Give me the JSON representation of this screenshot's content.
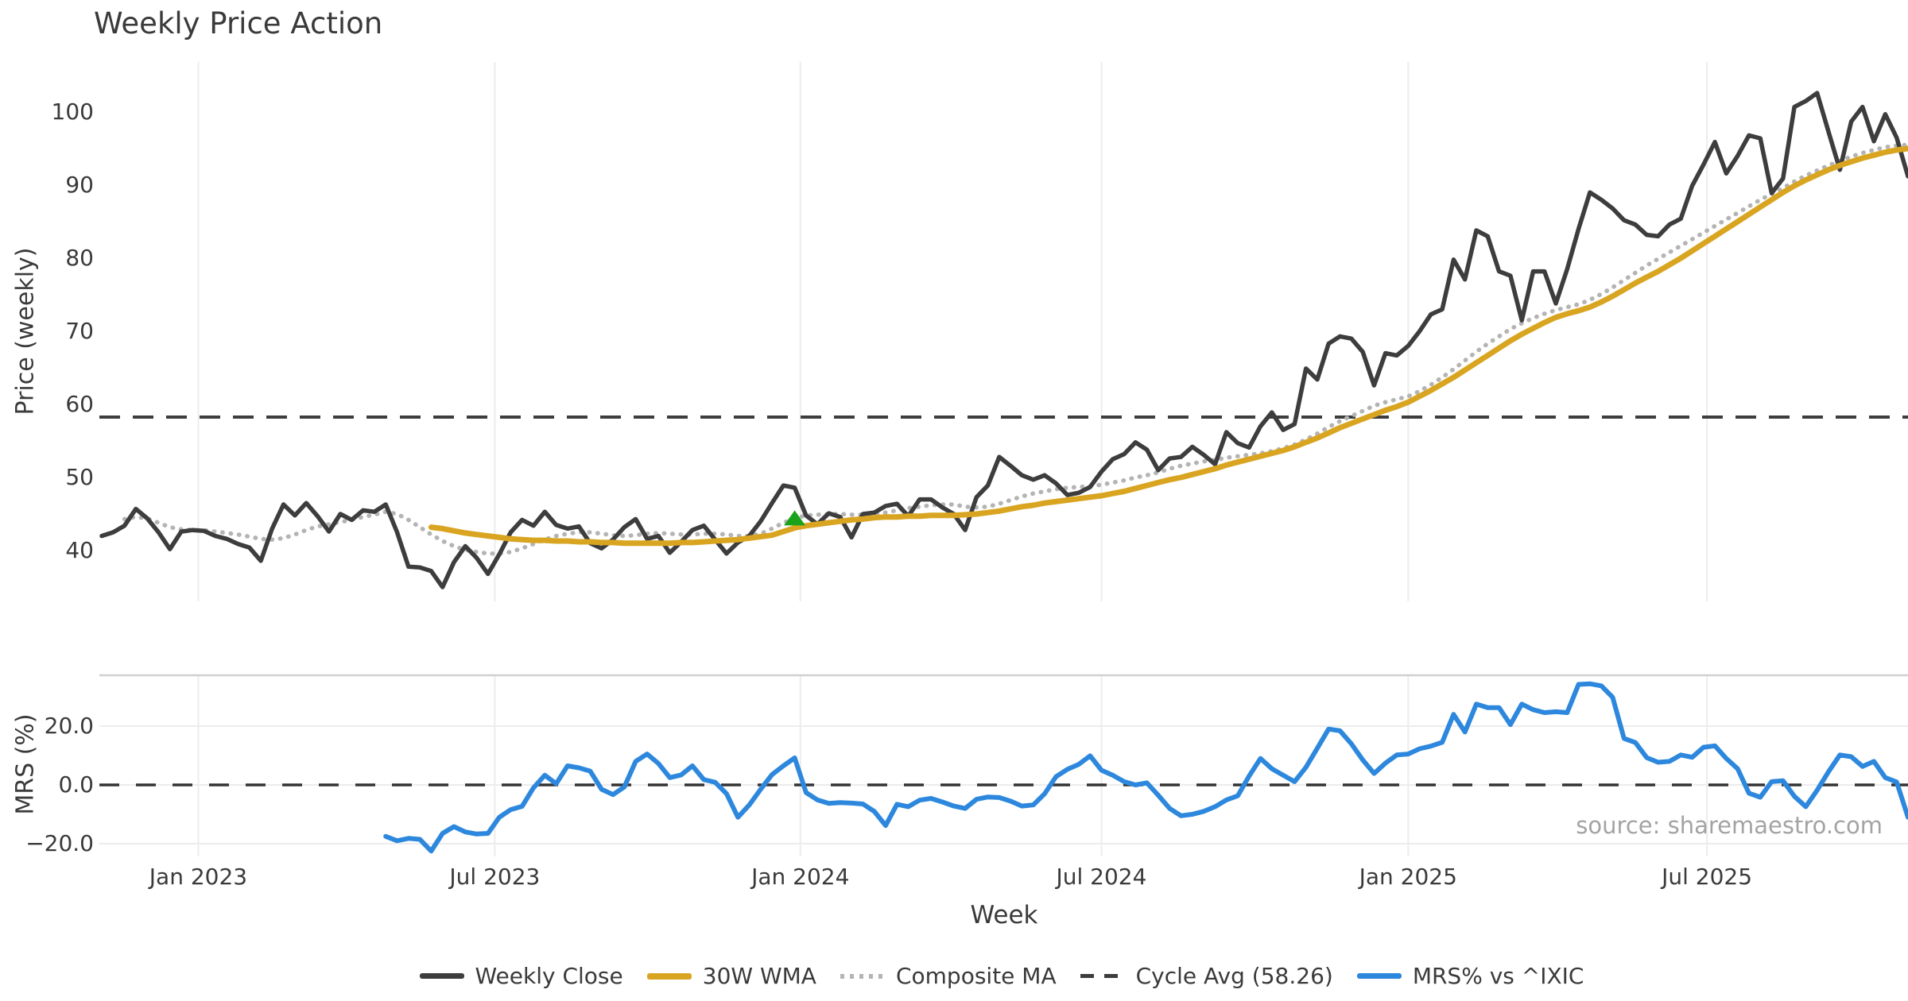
{
  "title": "Weekly Price Action",
  "source_note": "source: sharemaestro.com",
  "colors": {
    "weekly_close": "#3d3d3d",
    "wma_30w": "#d9a521",
    "composite_ma": "#b4b4b4",
    "cycle_avg": "#3d3d3d",
    "mrs_line": "#2d88dd",
    "buy_marker": "#1aa31a",
    "gridline": "#ececec",
    "panel_border": "#d0d0d0",
    "text": "#3a3a3a",
    "muted_text": "#a3a3a3"
  },
  "x_axis": {
    "label": "Week",
    "ticks": [
      {
        "label": "Jan 2023",
        "week_index": 8.5
      },
      {
        "label": "Jul 2023",
        "week_index": 34.6
      },
      {
        "label": "Jan 2024",
        "week_index": 61.5
      },
      {
        "label": "Jul 2024",
        "week_index": 88.0
      },
      {
        "label": "Jan 2025",
        "week_index": 115.0
      },
      {
        "label": "Jul 2025",
        "week_index": 141.3
      }
    ]
  },
  "legend": {
    "items": [
      {
        "label": "Weekly Close",
        "swatch": "solid-dark"
      },
      {
        "label": "30W WMA",
        "swatch": "solid-gold"
      },
      {
        "label": "Composite MA",
        "swatch": "dotted-gray"
      },
      {
        "label": "Cycle Avg (58.26)",
        "swatch": "dashed-dark"
      },
      {
        "label": "MRS% vs ^IXIC",
        "swatch": "solid-blue"
      }
    ]
  },
  "chart_data": [
    {
      "type": "line",
      "panel": "price",
      "ylabel": "Price (weekly)",
      "ylim": [
        33.3,
        107.2
      ],
      "grid": "vertical-only",
      "y_ticks": [
        {
          "label": "100",
          "value": 100
        },
        {
          "label": "90",
          "value": 90
        },
        {
          "label": "80",
          "value": 80
        },
        {
          "label": "70",
          "value": 70
        },
        {
          "label": "60",
          "value": 60
        },
        {
          "label": "50",
          "value": 50
        },
        {
          "label": "40",
          "value": 40
        }
      ],
      "series": [
        {
          "name": "Weekly Close",
          "style": "solid",
          "color": "#3d3d3d",
          "width": 5.5,
          "start_index": 0,
          "values": [
            42,
            42.5,
            43.4,
            45.7,
            44.4,
            42.5,
            40.2,
            42.6,
            42.8,
            42.7,
            42,
            41.6,
            40.9,
            40.4,
            38.6,
            43,
            46.3,
            44.8,
            46.5,
            44.7,
            42.6,
            45,
            44.2,
            45.5,
            45.3,
            46.3,
            42.5,
            37.8,
            37.7,
            37.2,
            35,
            38.4,
            40.6,
            39,
            36.8,
            39.5,
            42.5,
            44.2,
            43.4,
            45.3,
            43.5,
            43,
            43.3,
            41,
            40.3,
            41.5,
            43.2,
            44.3,
            41.6,
            42,
            39.7,
            41.2,
            42.8,
            43.4,
            41.5,
            39.6,
            41.1,
            42,
            44,
            46.5,
            48.9,
            48.6,
            44.8,
            43.6,
            45.1,
            44.6,
            41.8,
            45,
            45.2,
            46.1,
            46.4,
            44.7,
            47,
            47,
            45.9,
            45,
            42.8,
            47.3,
            48.9,
            52.8,
            51.6,
            50.3,
            49.7,
            50.3,
            49.2,
            47.6,
            47.9,
            48.7,
            50.8,
            52.5,
            53.2,
            54.8,
            53.8,
            51,
            52.6,
            52.8,
            54.2,
            53.1,
            51.8,
            56.2,
            54.7,
            54.1,
            57,
            58.9,
            56.5,
            57.3,
            64.9,
            63.4,
            68.3,
            69.3,
            69,
            67.2,
            62.6,
            67,
            66.7,
            68,
            70,
            72.3,
            73,
            79.8,
            77.1,
            83.8,
            83,
            78.2,
            77.6,
            71.5,
            78.2,
            78.2,
            73.8,
            78.5,
            84,
            89,
            88,
            86.8,
            85.2,
            84.6,
            83.2,
            83,
            84.6,
            85.4,
            89.9,
            92.8,
            95.9,
            91.6,
            94,
            96.8,
            96.4,
            88.9,
            90.9,
            100.7,
            101.5,
            102.6,
            97.3,
            92.1,
            98.7,
            100.7,
            96,
            99.7,
            96.5,
            91.2
          ]
        },
        {
          "name": "30W WMA",
          "style": "solid",
          "color": "#d9a521",
          "width": 7,
          "start_index": 29,
          "values": [
            43.2,
            43,
            42.7,
            42.4,
            42.2,
            42,
            41.8,
            41.6,
            41.5,
            41.4,
            41.4,
            41.3,
            41.3,
            41.2,
            41.2,
            41.1,
            41.1,
            41,
            41,
            41,
            41,
            41,
            41.1,
            41.1,
            41.2,
            41.3,
            41.4,
            41.5,
            41.7,
            41.9,
            42.1,
            42.6,
            43.1,
            43.4,
            43.6,
            43.8,
            44,
            44.2,
            44.3,
            44.5,
            44.6,
            44.6,
            44.7,
            44.7,
            44.8,
            44.8,
            44.8,
            44.9,
            45,
            45.2,
            45.4,
            45.7,
            46,
            46.2,
            46.5,
            46.7,
            46.9,
            47.1,
            47.3,
            47.5,
            47.8,
            48.1,
            48.5,
            48.9,
            49.3,
            49.7,
            50,
            50.4,
            50.8,
            51.2,
            51.7,
            52.1,
            52.5,
            52.9,
            53.3,
            53.7,
            54.2,
            54.8,
            55.4,
            56.1,
            56.8,
            57.4,
            58,
            58.6,
            59.2,
            59.7,
            60.3,
            61.1,
            61.9,
            62.8,
            63.7,
            64.7,
            65.7,
            66.7,
            67.7,
            68.7,
            69.6,
            70.4,
            71.2,
            71.9,
            72.4,
            72.8,
            73.3,
            74,
            74.8,
            75.7,
            76.6,
            77.4,
            78.2,
            79.1,
            80,
            81,
            82,
            83,
            84,
            85,
            86,
            87,
            88,
            89,
            89.9,
            90.7,
            91.4,
            92.1,
            92.7,
            93.2,
            93.7,
            94.1,
            94.5,
            94.8,
            95
          ]
        },
        {
          "name": "Composite MA",
          "style": "dotted",
          "color": "#b4b4b4",
          "width": 5.5,
          "start_index": 2,
          "values": [
            44.3,
            44.6,
            44.4,
            43.8,
            43.2,
            42.9,
            42.8,
            42.8,
            42.6,
            42.4,
            42.2,
            41.9,
            41.6,
            41.5,
            41.7,
            42.2,
            42.8,
            43.3,
            43.6,
            43.9,
            44.2,
            44.6,
            44.9,
            45.3,
            45,
            44.2,
            43.2,
            42.2,
            41.3,
            40.6,
            40.1,
            39.8,
            39.6,
            39.6,
            39.8,
            40.3,
            40.9,
            41.5,
            42,
            42.3,
            42.5,
            42.5,
            42.3,
            42.1,
            42,
            42.1,
            42.3,
            42.4,
            42.3,
            42.2,
            42.2,
            42.3,
            42.3,
            42.2,
            42,
            42,
            42.3,
            43,
            43.8,
            44.4,
            44.8,
            44.9,
            45,
            45,
            44.9,
            44.9,
            45,
            45.2,
            45.5,
            45.8,
            46,
            46.2,
            46.3,
            46.3,
            46,
            45.9,
            46,
            46.4,
            46.9,
            47.4,
            47.8,
            48.1,
            48.4,
            48.6,
            48.7,
            48.8,
            49,
            49.3,
            49.6,
            50,
            50.3,
            50.7,
            51.2,
            51.6,
            51.9,
            52.2,
            52.4,
            52.7,
            52.9,
            53.1,
            53.3,
            53.6,
            54,
            54.5,
            55.2,
            56,
            56.9,
            57.7,
            58.4,
            59.1,
            59.8,
            60.3,
            60.7,
            61.1,
            61.8,
            62.7,
            63.7,
            64.8,
            66,
            67.2,
            68.3,
            69.3,
            70.3,
            71.1,
            71.8,
            72.4,
            72.9,
            73.3,
            73.7,
            74.3,
            75.1,
            76,
            77,
            78,
            79,
            79.9,
            80.8,
            81.7,
            82.6,
            83.5,
            84.4,
            85.3,
            86.2,
            87.1,
            88,
            88.8,
            89.6,
            90.5,
            91.3,
            92,
            92.7,
            93.3,
            93.9,
            94.4,
            94.8,
            95.2,
            95.4,
            95.5
          ]
        },
        {
          "name": "Cycle Avg (58.26)",
          "style": "dashed",
          "color": "#3d3d3d",
          "width": 4,
          "hline_value": 58.26
        }
      ],
      "marker": {
        "type": "triangle-up",
        "color": "#1aa31a",
        "week_index": 61,
        "value": 45.5
      }
    },
    {
      "type": "line",
      "panel": "mrs",
      "ylabel": "MRS (%)",
      "ylim": [
        -25.7,
        37.3
      ],
      "grid": "both",
      "y_ticks": [
        {
          "label": "20.0",
          "value": 20
        },
        {
          "label": "0.0",
          "value": 0
        },
        {
          "label": "−20.0",
          "value": -20
        }
      ],
      "zero_line_dashed": true,
      "series": [
        {
          "name": "MRS% vs ^IXIC",
          "style": "solid",
          "color": "#2d88dd",
          "width": 6,
          "start_index": 25,
          "values": [
            -17.5,
            -19,
            -18.2,
            -18.5,
            -22.5,
            -16.5,
            -14.2,
            -16,
            -16.7,
            -16.5,
            -11,
            -8.4,
            -7.3,
            -1,
            3.3,
            0.4,
            6.5,
            5.8,
            4.7,
            -1.5,
            -3.3,
            -0.7,
            8,
            10.5,
            7.3,
            2.5,
            3.4,
            6.5,
            1.8,
            0.9,
            -3,
            -11,
            -6.8,
            -1.5,
            3.5,
            6.5,
            9.2,
            -2.6,
            -5.1,
            -6.3,
            -6,
            -6.2,
            -6.5,
            -9,
            -13.8,
            -6.6,
            -7.4,
            -5.2,
            -4.6,
            -5.8,
            -7.2,
            -8,
            -4.9,
            -4.1,
            -4.3,
            -5.5,
            -7.2,
            -6.8,
            -3,
            2.8,
            5.3,
            7,
            9.9,
            5,
            3.3,
            1.1,
            0,
            0.7,
            -3.5,
            -8,
            -10.5,
            -10,
            -9,
            -7.4,
            -5.1,
            -3.7,
            3,
            9,
            5.5,
            3.3,
            1.1,
            6,
            12.5,
            19,
            18.4,
            14,
            8.5,
            3.9,
            7.4,
            10.2,
            10.5,
            12.3,
            13.2,
            14.5,
            24,
            18,
            27.5,
            26.3,
            26.3,
            20.5,
            27.5,
            25.6,
            24.6,
            24.9,
            24.6,
            34.2,
            34.4,
            33.7,
            29.8,
            15.8,
            14.4,
            9.3,
            7.7,
            8,
            10.2,
            9.4,
            12.8,
            13.3,
            9,
            5.5,
            -2.8,
            -4.2,
            1.1,
            1.4,
            -3.9,
            -7.4,
            -1.8,
            4.5,
            10.2,
            9.6,
            6.3,
            8,
            2.5,
            1,
            -11
          ]
        }
      ]
    }
  ]
}
